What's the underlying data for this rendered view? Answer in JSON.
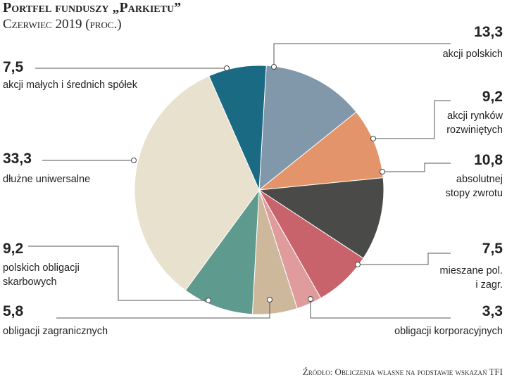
{
  "chart_data": {
    "type": "pie",
    "title": "Portfel funduszy „Parkietu”",
    "subtitle": "Czerwiec 2019 (proc.)",
    "source": "Źródło: Obliczenia własne na podstawie wskazań TFI",
    "categories": [
      "akcji polskich",
      "akcji rynków rozwiniętych",
      "absolutnej stopy zwrotu",
      "mieszane pol. i zagr.",
      "obligacji korporacyjnych",
      "obligacji zagranicznych",
      "polskich obligacji skarbowych",
      "dłużne uniwersalne",
      "akcji małych i średnich spółek"
    ],
    "values": [
      13.3,
      9.2,
      10.8,
      7.5,
      3.3,
      5.8,
      9.2,
      33.3,
      7.5
    ],
    "value_labels": [
      "13,3",
      "9,2",
      "10,8",
      "7,5",
      "3,3",
      "5,8",
      "9,2",
      "33,3",
      "7,5"
    ],
    "colors": [
      "#8197aa",
      "#e3946a",
      "#4a4a48",
      "#c8636b",
      "#e09b9d",
      "#cdb89b",
      "#5f9a8f",
      "#e8e1cd",
      "#1a6a84"
    ]
  }
}
